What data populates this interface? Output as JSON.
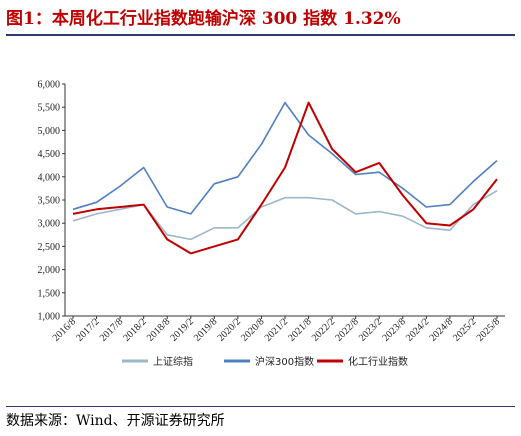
{
  "header": {
    "title": "图1：本周化工行业指数跑输沪深 300 指数 1.32%"
  },
  "footer": {
    "source": "数据来源：Wind、开源证券研究所"
  },
  "chart_data": {
    "type": "line",
    "title": "",
    "xlabel": "",
    "ylabel": "",
    "ylim": [
      1000,
      6000
    ],
    "yticks": [
      "1,000",
      "1,500",
      "2,000",
      "2,500",
      "3,000",
      "3,500",
      "4,000",
      "4,500",
      "5,000",
      "5,500",
      "6,000"
    ],
    "x": [
      "2016/8",
      "2017/2",
      "2017/8",
      "2018/2",
      "2018/8",
      "2019/2",
      "2019/8",
      "2020/2",
      "2020/8",
      "2021/2",
      "2021/8",
      "2022/2",
      "2022/8",
      "2023/2",
      "2023/8",
      "2024/2",
      "2024/8",
      "2025/2",
      "2025/8"
    ],
    "legend_position": "bottom",
    "grid": false,
    "series": [
      {
        "name": "上证综指",
        "color": "#9BB7C9",
        "values": [
          3050,
          3200,
          3300,
          3400,
          2750,
          2650,
          2900,
          2900,
          3350,
          3550,
          3550,
          3500,
          3200,
          3250,
          3150,
          2900,
          2850,
          3400,
          3700
        ]
      },
      {
        "name": "沪深300指数",
        "color": "#4F7FC0",
        "values": [
          3300,
          3450,
          3800,
          4200,
          3350,
          3200,
          3850,
          4000,
          4700,
          5600,
          4900,
          4500,
          4050,
          4100,
          3750,
          3350,
          3400,
          3900,
          4350
        ]
      },
      {
        "name": "化工行业指数",
        "color": "#C00000",
        "values": [
          3200,
          3300,
          3350,
          3400,
          2650,
          2350,
          2500,
          2650,
          3400,
          4200,
          5600,
          4600,
          4100,
          4300,
          3600,
          3000,
          2950,
          3300,
          3950
        ]
      }
    ]
  }
}
